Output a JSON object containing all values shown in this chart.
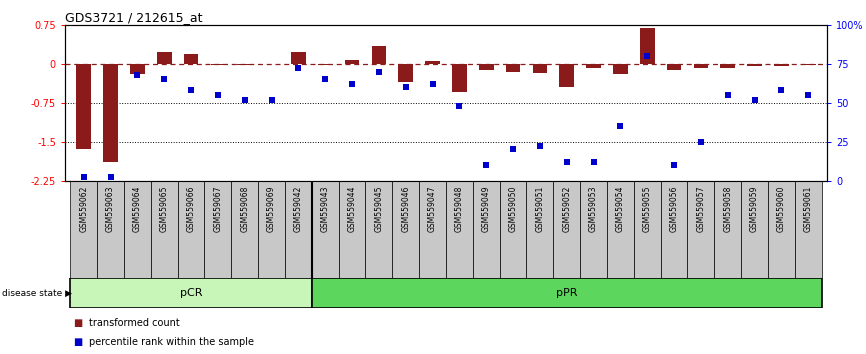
{
  "title": "GDS3721 / 212615_at",
  "samples": [
    "GSM559062",
    "GSM559063",
    "GSM559064",
    "GSM559065",
    "GSM559066",
    "GSM559067",
    "GSM559068",
    "GSM559069",
    "GSM559042",
    "GSM559043",
    "GSM559044",
    "GSM559045",
    "GSM559046",
    "GSM559047",
    "GSM559048",
    "GSM559049",
    "GSM559050",
    "GSM559051",
    "GSM559052",
    "GSM559053",
    "GSM559054",
    "GSM559055",
    "GSM559056",
    "GSM559057",
    "GSM559058",
    "GSM559059",
    "GSM559060",
    "GSM559061"
  ],
  "bar_values": [
    -1.65,
    -1.9,
    -0.2,
    0.22,
    0.18,
    -0.03,
    -0.03,
    0.0,
    0.22,
    -0.03,
    0.08,
    0.35,
    -0.35,
    0.05,
    -0.55,
    -0.12,
    -0.15,
    -0.18,
    -0.45,
    -0.08,
    -0.2,
    0.68,
    -0.12,
    -0.08,
    -0.08,
    -0.05,
    -0.05,
    -0.03
  ],
  "percentile_values": [
    2,
    2,
    68,
    65,
    58,
    55,
    52,
    52,
    72,
    65,
    62,
    70,
    60,
    62,
    48,
    10,
    20,
    22,
    12,
    12,
    35,
    80,
    10,
    25,
    55,
    52,
    58,
    55
  ],
  "pCR_count": 9,
  "pPR_count": 19,
  "ylim_left": [
    -2.25,
    0.75
  ],
  "ylim_right": [
    0,
    100
  ],
  "yticks_left": [
    -2.25,
    -1.5,
    -0.75,
    0,
    0.75
  ],
  "yticks_right": [
    0,
    25,
    50,
    75,
    100
  ],
  "bar_color": "#8B1A1A",
  "dot_color": "#0000CD",
  "dotted_lines": [
    -0.75,
    -1.5
  ],
  "pcr_color": "#c8f5b8",
  "ppr_color": "#5cd65c",
  "group_border_color": "#000000",
  "xtick_bg": "#c8c8c8",
  "background_color": "#ffffff"
}
